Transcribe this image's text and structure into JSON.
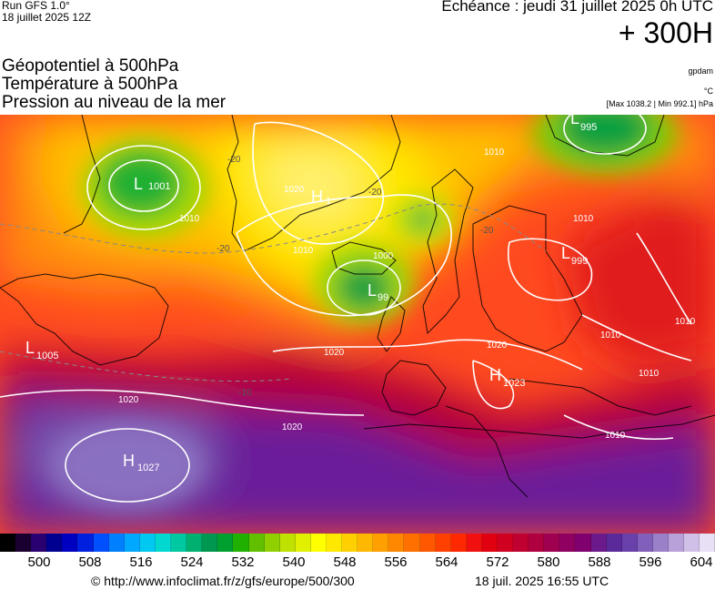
{
  "header": {
    "run": "Run GFS 1.0°",
    "run_date": "18 juillet 2025 12Z",
    "echeance": "Echéance : jeudi 31 juillet 2025 0h UTC",
    "lead_time": "+ 300H",
    "fields": [
      "Géopotentiel à 500hPa",
      "Température à 500hPa",
      "Pression au niveau de la mer"
    ],
    "credit": "gpdam",
    "unit": "°C",
    "maxmin": "[Max 1038.2 | Min 992.1] hPa"
  },
  "map": {
    "pressure_centers": [
      {
        "type": "L",
        "value": "1001"
      },
      {
        "type": "H",
        "value": "1"
      },
      {
        "type": "L",
        "value": "995"
      },
      {
        "type": "L",
        "value": "99"
      },
      {
        "type": "L",
        "value": "999"
      },
      {
        "type": "L",
        "value": "1005"
      },
      {
        "type": "H",
        "value": "1023"
      },
      {
        "type": "H",
        "value": "1027"
      }
    ],
    "isobar_labels": [
      "1010",
      "1010",
      "1020",
      "1010",
      "1010",
      "1020",
      "1020",
      "1020",
      "1020",
      "1010",
      "1010",
      "1010",
      "1010",
      "1000"
    ],
    "temperature_labels": [
      "-20",
      "-20",
      "-20",
      "-20",
      "-10"
    ]
  },
  "scale": {
    "colors": [
      "#000000",
      "#1a0030",
      "#2a0070",
      "#000090",
      "#0000c0",
      "#0020e0",
      "#0050ff",
      "#0080ff",
      "#00a8ff",
      "#00c8f0",
      "#00d8d0",
      "#00c8a0",
      "#00b070",
      "#009850",
      "#00a030",
      "#20b000",
      "#60c000",
      "#90d000",
      "#c0e000",
      "#e0f000",
      "#ffff00",
      "#ffe800",
      "#ffd000",
      "#ffb800",
      "#ffa000",
      "#ff8800",
      "#ff7000",
      "#ff5800",
      "#ff4000",
      "#ff2800",
      "#f01010",
      "#e00010",
      "#d00020",
      "#c00030",
      "#b00040",
      "#a00050",
      "#900060",
      "#800070",
      "#6a1a8a",
      "#5a2a9a",
      "#6a40aa",
      "#8060ba",
      "#9a80c8",
      "#b8a0d8",
      "#d0c0e8",
      "#e8e0f4"
    ],
    "labels": [
      "500",
      "508",
      "516",
      "524",
      "532",
      "540",
      "548",
      "556",
      "564",
      "572",
      "580",
      "588",
      "596",
      "604"
    ]
  },
  "footer": {
    "url": "© http://www.infoclimat.fr/z/gfs/europe/500/300",
    "date": "18 juil. 2025 16:55 UTC"
  }
}
